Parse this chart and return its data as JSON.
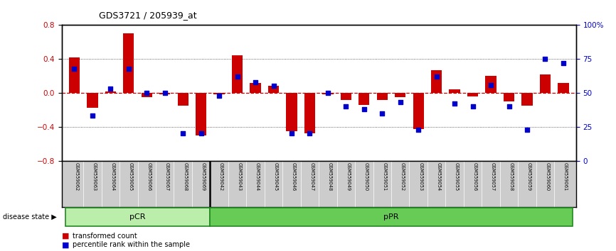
{
  "title": "GDS3721 / 205939_at",
  "samples": [
    "GSM559062",
    "GSM559063",
    "GSM559064",
    "GSM559065",
    "GSM559066",
    "GSM559067",
    "GSM559068",
    "GSM559069",
    "GSM559042",
    "GSM559043",
    "GSM559044",
    "GSM559045",
    "GSM559046",
    "GSM559047",
    "GSM559048",
    "GSM559049",
    "GSM559050",
    "GSM559051",
    "GSM559052",
    "GSM559053",
    "GSM559054",
    "GSM559055",
    "GSM559056",
    "GSM559057",
    "GSM559058",
    "GSM559059",
    "GSM559060",
    "GSM559061"
  ],
  "transformed_count": [
    0.42,
    -0.18,
    0.02,
    0.7,
    -0.05,
    -0.02,
    -0.15,
    -0.5,
    -0.02,
    0.44,
    0.12,
    0.08,
    -0.45,
    -0.48,
    -0.02,
    -0.08,
    -0.14,
    -0.08,
    -0.05,
    -0.43,
    0.27,
    0.04,
    -0.04,
    0.2,
    -0.1,
    -0.15,
    0.22,
    0.12
  ],
  "percentile_rank": [
    68,
    33,
    53,
    68,
    50,
    50,
    20,
    20,
    48,
    62,
    58,
    55,
    20,
    20,
    50,
    40,
    38,
    35,
    43,
    23,
    62,
    42,
    40,
    56,
    40,
    23,
    75,
    72
  ],
  "pCR_count": 8,
  "pPR_count": 20,
  "ylim": [
    -0.8,
    0.8
  ],
  "y2lim": [
    0,
    100
  ],
  "bar_color": "#cc0000",
  "dot_color": "#0000cc",
  "pCR_color": "#bbeeaa",
  "pPR_color": "#66cc55",
  "group_border_color": "#228822",
  "bg_color": "#ffffff",
  "hline_color": "#cc0000",
  "grid_color": "#333333",
  "tick_bg_color": "#cccccc",
  "yticks_left": [
    -0.8,
    -0.4,
    0.0,
    0.4,
    0.8
  ],
  "yticks_right": [
    0,
    25,
    50,
    75,
    100
  ],
  "legend_labels": [
    "transformed count",
    "percentile rank within the sample"
  ]
}
